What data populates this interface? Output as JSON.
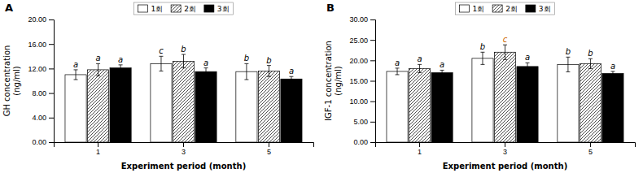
{
  "chart_data": [
    {
      "type": "bar",
      "title": "A",
      "y_label": "GH concentration\n(ng/ml)",
      "x_label": "Experiment period (month)",
      "categories": [
        "1",
        "3",
        "5"
      ],
      "ylim": [
        0,
        20.0
      ],
      "yticks": [
        {
          "value": 0.0,
          "label": "0.00"
        },
        {
          "value": 4.0,
          "label": "4.00"
        },
        {
          "value": 8.0,
          "label": "8.00"
        },
        {
          "value": 12.0,
          "label": "12.00"
        },
        {
          "value": 16.0,
          "label": "16.00"
        },
        {
          "value": 20.0,
          "label": "20.00"
        }
      ],
      "grid": false,
      "legend": "top",
      "series": [
        {
          "name": "1회",
          "color": "white",
          "values": [
            11.0,
            12.8,
            11.5
          ],
          "errors": [
            0.8,
            1.2,
            1.3
          ],
          "letters": [
            "a",
            "c",
            "b"
          ],
          "letter_colors": [
            "black",
            "black",
            "black"
          ]
        },
        {
          "name": "2회",
          "color": "white",
          "values": [
            11.8,
            13.2,
            11.6
          ],
          "errors": [
            1.0,
            1.1,
            0.9
          ],
          "letters": [
            "a",
            "b",
            "b"
          ],
          "letter_colors": [
            "black",
            "black",
            "black"
          ]
        },
        {
          "name": "3회",
          "color": "black",
          "values": [
            12.1,
            11.5,
            10.3
          ],
          "errors": [
            0.5,
            0.6,
            0.4
          ],
          "letters": [
            "a",
            "a",
            "a"
          ],
          "letter_colors": [
            "black",
            "black",
            "black"
          ]
        }
      ]
    },
    {
      "type": "bar",
      "title": "B",
      "y_label": "IGF-1 concentration\n(ng/ml)",
      "x_label": "Experiment period (month)",
      "categories": [
        "1",
        "3",
        "5"
      ],
      "ylim": [
        0,
        30.0
      ],
      "yticks": [
        {
          "value": 0.0,
          "label": "0.00"
        },
        {
          "value": 5.0,
          "label": "5.00"
        },
        {
          "value": 10.0,
          "label": "10.00"
        },
        {
          "value": 15.0,
          "label": "15.00"
        },
        {
          "value": 20.0,
          "label": "20.00"
        },
        {
          "value": 25.0,
          "label": "25.00"
        },
        {
          "value": 30.0,
          "label": "30.00"
        }
      ],
      "grid": false,
      "legend": "top",
      "series": [
        {
          "name": "1회",
          "color": "white",
          "values": [
            17.3,
            20.5,
            19.0
          ],
          "errors": [
            0.8,
            1.5,
            1.8
          ],
          "letters": [
            "a",
            "b",
            "b"
          ],
          "letter_colors": [
            "black",
            "black",
            "black"
          ]
        },
        {
          "name": "2회",
          "color": "white",
          "values": [
            18.0,
            22.0,
            19.2
          ],
          "errors": [
            1.0,
            1.8,
            1.2
          ],
          "letters": [
            "a",
            "c",
            "b"
          ],
          "letter_colors": [
            "black",
            "#cc6600",
            "black"
          ]
        },
        {
          "name": "3회",
          "color": "black",
          "values": [
            17.0,
            18.5,
            16.8
          ],
          "errors": [
            0.6,
            0.9,
            0.5
          ],
          "letters": [
            "a",
            "a",
            "a"
          ],
          "letter_colors": [
            "black",
            "black",
            "black"
          ]
        }
      ]
    }
  ]
}
